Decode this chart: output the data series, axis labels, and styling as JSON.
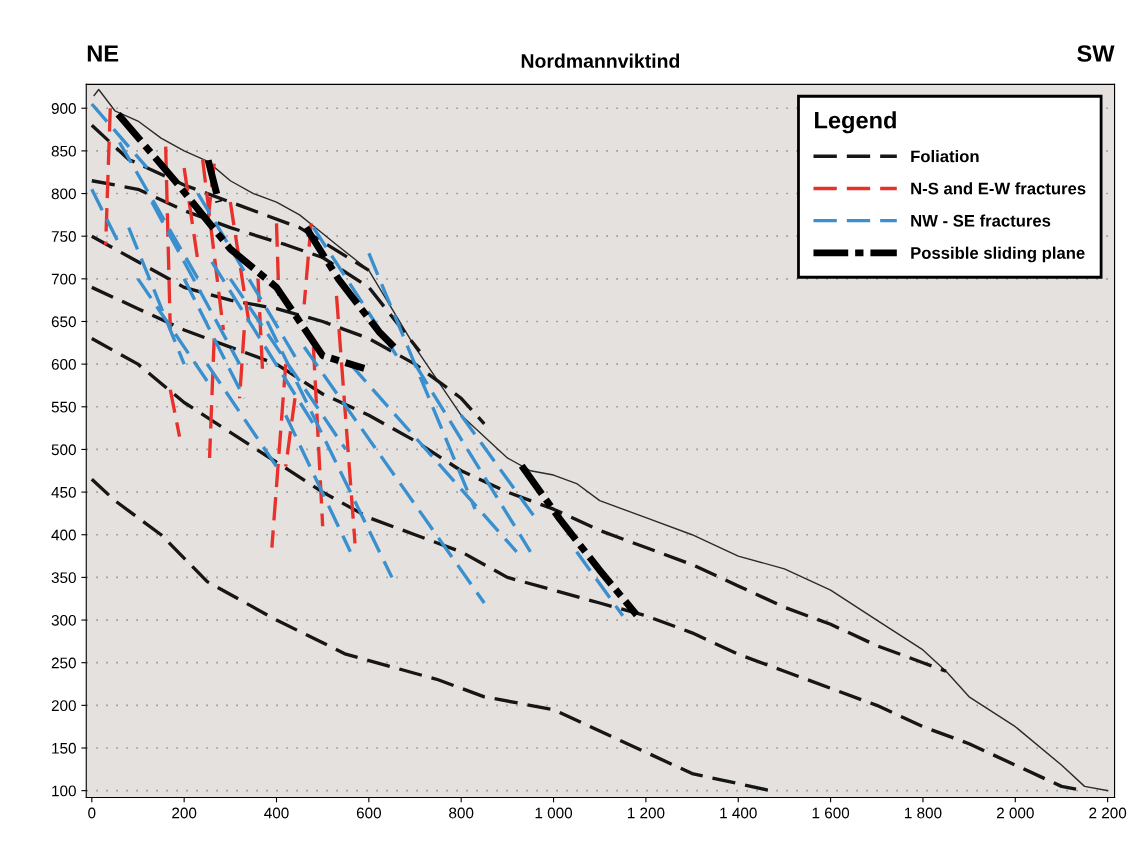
{
  "chart_data": {
    "type": "line",
    "title": "Nordmannviktind",
    "annotations": [
      "NE",
      "SW"
    ],
    "xlim": [
      -12,
      2215
    ],
    "ylim": [
      92,
      928
    ],
    "xticks": [
      0,
      200,
      400,
      600,
      800,
      {
        "value": 1000,
        "label": "1 000"
      },
      {
        "value": 1200,
        "label": "1 200"
      },
      {
        "value": 1400,
        "label": "1 400"
      },
      {
        "value": 1600,
        "label": "1 600"
      },
      {
        "value": 1800,
        "label": "1 800"
      },
      {
        "value": 2000,
        "label": "2 000"
      },
      {
        "value": 2200,
        "label": "2 200"
      }
    ],
    "yticks": [
      100,
      150,
      200,
      250,
      300,
      350,
      400,
      450,
      500,
      550,
      600,
      650,
      700,
      750,
      800,
      850,
      900
    ],
    "grid": "y",
    "legend": "top right",
    "legend_title": "Legend",
    "marker": "none",
    "series": [
      {
        "color": "#2b2b2b",
        "line_style": "solid",
        "x": [
          5,
          15,
          50,
          100,
          150,
          200,
          250,
          300,
          350,
          400,
          450,
          480,
          530,
          600,
          700,
          800,
          900,
          950,
          1000,
          1050,
          1100,
          1200,
          1300,
          1400,
          1500,
          1600,
          1700,
          1800,
          1850,
          1900,
          2000,
          2100,
          2150,
          2200
        ],
        "values": [
          915,
          922,
          897,
          885,
          865,
          850,
          838,
          815,
          800,
          790,
          775,
          762,
          740,
          710,
          620,
          540,
          490,
          475,
          470,
          460,
          440,
          420,
          400,
          375,
          360,
          335,
          300,
          265,
          240,
          210,
          175,
          130,
          105,
          100
        ]
      },
      {
        "name": "Foliation",
        "color": "#161616",
        "line_style": "dashed",
        "x": [
          0,
          80,
          200,
          300,
          450,
          600,
          null,
          0,
          100,
          200,
          300,
          420,
          500,
          600,
          710,
          null,
          0,
          100,
          200,
          300,
          400,
          500,
          600,
          700,
          800,
          850,
          null,
          0,
          100,
          200,
          300,
          400,
          500,
          600,
          700,
          800,
          900,
          1000,
          1100,
          1200,
          1300,
          1400,
          1500,
          1600,
          1700,
          1800,
          1850,
          null,
          0,
          100,
          200,
          300,
          400,
          500,
          600,
          700,
          800,
          900,
          1000,
          1100,
          1200,
          1300,
          1400,
          1500,
          1600,
          1700,
          1800,
          1900,
          2000,
          2100,
          2150,
          null,
          0,
          50,
          150,
          250,
          400,
          550,
          750,
          850,
          1000,
          1100,
          1300,
          1470
        ],
        "values": [
          880,
          840,
          810,
          790,
          760,
          710,
          null,
          815,
          805,
          780,
          760,
          740,
          725,
          690,
          615,
          null,
          750,
          720,
          690,
          675,
          665,
          650,
          630,
          600,
          560,
          530,
          null,
          690,
          665,
          640,
          620,
          600,
          565,
          540,
          510,
          475,
          450,
          430,
          405,
          385,
          365,
          340,
          315,
          295,
          270,
          250,
          240,
          null,
          630,
          600,
          555,
          520,
          485,
          450,
          420,
          400,
          380,
          350,
          335,
          320,
          305,
          285,
          260,
          240,
          220,
          200,
          175,
          155,
          130,
          105,
          100,
          null,
          465,
          440,
          400,
          345,
          300,
          260,
          230,
          210,
          195,
          170,
          120,
          100
        ]
      },
      {
        "name": "N-S and E-W fractures",
        "color": "#e8312a",
        "line_style": "dashed",
        "x": [
          40,
          30,
          null,
          160,
          170,
          null,
          170,
          190,
          null,
          240,
          285,
          null,
          265,
          255,
          null,
          265,
          250,
          null,
          300,
          340,
          null,
          330,
          320,
          null,
          400,
          405,
          null,
          420,
          390,
          null,
          440,
          420,
          null,
          475,
          460,
          null,
          480,
          500,
          null,
          530,
          570,
          null,
          360,
          370,
          null,
          200,
          230
        ],
        "values": [
          900,
          740,
          null,
          855,
          640,
          null,
          570,
          515,
          null,
          840,
          640,
          null,
          630,
          490,
          null,
          835,
          760,
          null,
          790,
          650,
          null,
          640,
          560,
          null,
          765,
          680,
          null,
          600,
          385,
          null,
          560,
          480,
          null,
          765,
          670,
          null,
          620,
          410,
          null,
          680,
          390,
          null,
          700,
          590,
          null,
          830,
          720
        ]
      },
      {
        "name": "NW - SE fractures",
        "color": "#3a8fcf",
        "line_style": "dashed",
        "x": [
          0,
          120,
          null,
          0,
          60,
          null,
          60,
          230,
          null,
          80,
          200,
          null,
          130,
          320,
          null,
          200,
          330,
          null,
          250,
          400,
          null,
          230,
          450,
          null,
          260,
          480,
          null,
          300,
          550,
          null,
          380,
          650,
          null,
          480,
          660,
          null,
          460,
          850,
          null,
          560,
          920,
          null,
          600,
          830,
          null,
          420,
          560,
          null,
          700,
          950,
          null,
          800,
          960,
          null,
          1050,
          1150,
          null,
          100,
          250
        ],
        "values": [
          905,
          830,
          null,
          805,
          740,
          null,
          860,
          700,
          null,
          760,
          600,
          null,
          790,
          600,
          null,
          700,
          560,
          null,
          600,
          480,
          null,
          800,
          600,
          null,
          720,
          530,
          null,
          700,
          500,
          null,
          650,
          350,
          null,
          760,
          610,
          null,
          620,
          320,
          null,
          600,
          380,
          null,
          730,
          430,
          null,
          540,
          380,
          null,
          600,
          380,
          null,
          540,
          420,
          null,
          380,
          305,
          null,
          700,
          580
        ]
      },
      {
        "name": "Possible sliding plane",
        "color": "#000000",
        "line_style": "dashdot",
        "x": [
          57,
          180,
          300,
          400,
          500,
          590,
          null,
          252,
          275,
          null,
          931,
          1014,
          1099,
          1180
        ],
        "values": [
          893,
          815,
          735,
          690,
          610,
          595,
          null,
          839,
          790,
          null,
          481,
          418,
          359,
          306
        ]
      },
      {
        "color": "#000000",
        "line_style": "dashdot",
        "x": [
          464,
          535,
          622,
          664
        ],
        "values": [
          760,
          699,
          638,
          615
        ]
      }
    ]
  }
}
